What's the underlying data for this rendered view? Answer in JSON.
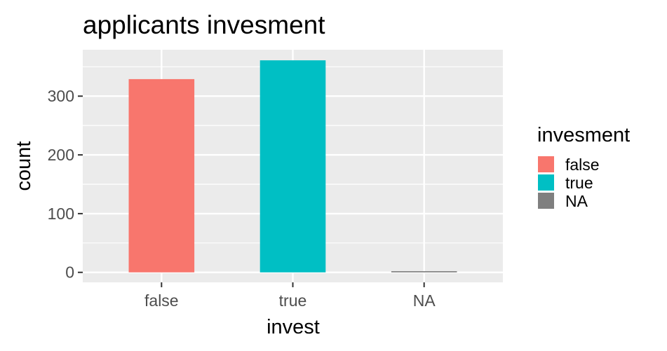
{
  "chart_data": {
    "type": "bar",
    "title": "applicants invesment",
    "xlabel": "invest",
    "ylabel": "count",
    "categories": [
      "false",
      "true",
      "NA"
    ],
    "values": [
      329,
      361,
      2
    ],
    "colors": [
      "#F8766D",
      "#00BFC4",
      "#7F7F7F"
    ],
    "ylim": [
      -17,
      379
    ],
    "y_ticks": [
      0,
      100,
      200,
      300
    ],
    "y_tick_labels": [
      "0",
      "100",
      "200",
      "300"
    ],
    "grid": true,
    "legend": {
      "title": "invesment",
      "position": "right",
      "entries": [
        "false",
        "true",
        "NA"
      ]
    }
  }
}
